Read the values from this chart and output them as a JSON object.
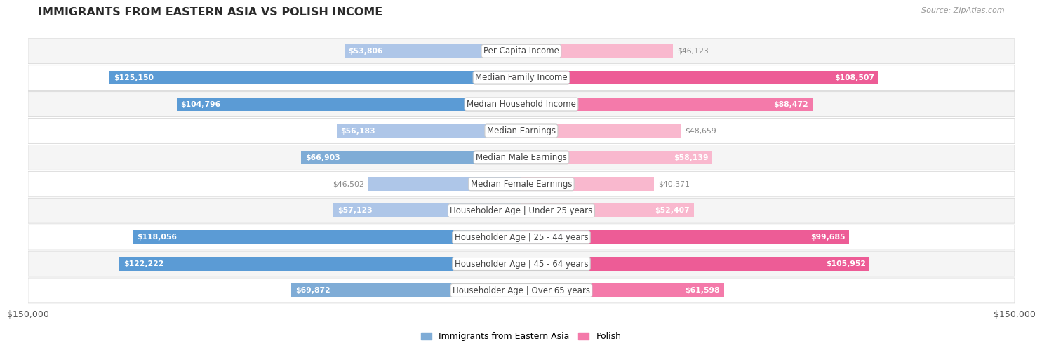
{
  "title": "IMMIGRANTS FROM EASTERN ASIA VS POLISH INCOME",
  "source": "Source: ZipAtlas.com",
  "categories": [
    "Per Capita Income",
    "Median Family Income",
    "Median Household Income",
    "Median Earnings",
    "Median Male Earnings",
    "Median Female Earnings",
    "Householder Age | Under 25 years",
    "Householder Age | 25 - 44 years",
    "Householder Age | 45 - 64 years",
    "Householder Age | Over 65 years"
  ],
  "eastern_asia_values": [
    53806,
    125150,
    104796,
    56183,
    66903,
    46502,
    57123,
    118056,
    122222,
    69872
  ],
  "polish_values": [
    46123,
    108507,
    88472,
    48659,
    58139,
    40371,
    52407,
    99685,
    105952,
    61598
  ],
  "eastern_asia_labels": [
    "$53,806",
    "$125,150",
    "$104,796",
    "$56,183",
    "$66,903",
    "$46,502",
    "$57,123",
    "$118,056",
    "$122,222",
    "$69,872"
  ],
  "polish_labels": [
    "$46,123",
    "$108,507",
    "$88,472",
    "$48,659",
    "$58,139",
    "$40,371",
    "$52,407",
    "$99,685",
    "$105,952",
    "$61,598"
  ],
  "max_value": 150000,
  "x_tick_labels": [
    "$150,000",
    "$150,000"
  ],
  "blue_light": "#aec6e8",
  "blue_medium": "#7facd6",
  "blue_strong": "#5b9bd5",
  "pink_light": "#f9b8ce",
  "pink_medium": "#f47aaa",
  "pink_strong": "#ed5c96",
  "row_bg_odd": "#f5f5f5",
  "row_bg_even": "#ffffff",
  "row_border": "#d8d8d8",
  "label_white": "#ffffff",
  "label_dark": "#888888",
  "title_color": "#2a2a2a",
  "source_color": "#999999",
  "center_bg": "#ffffff",
  "center_border": "#cccccc",
  "center_color": "#444444",
  "legend_blue": "#7facd6",
  "legend_pink": "#f47aaa",
  "inside_threshold": 50000
}
